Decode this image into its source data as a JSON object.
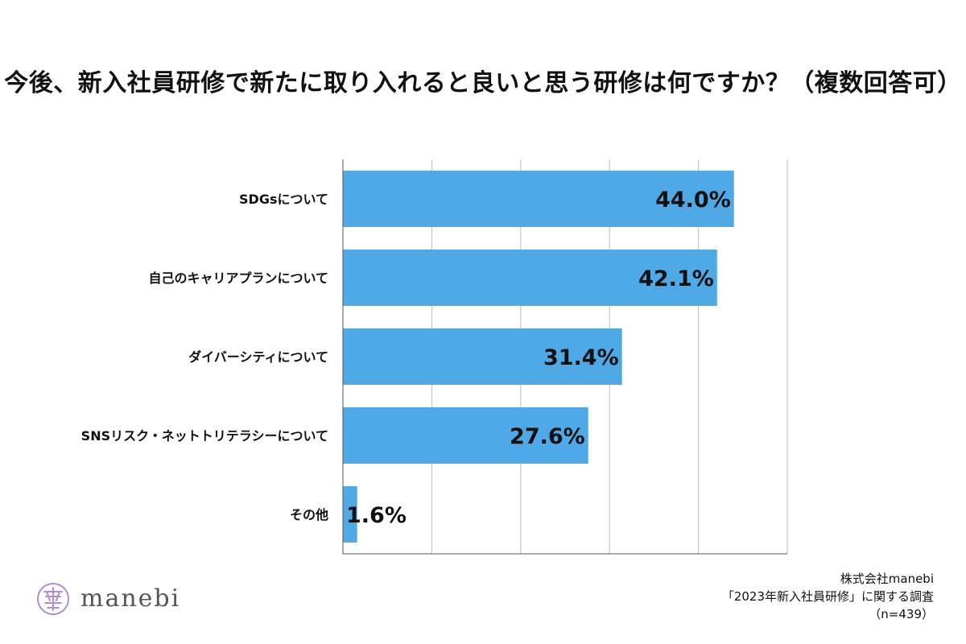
{
  "chart_data": {
    "type": "bar",
    "orientation": "horizontal",
    "title": "今後、新入社員研修で新たに取り入れると良いと思う研修は何ですか？（複数回答可）",
    "categories": [
      "SDGsについて",
      "自己のキャリアプランについて",
      "ダイバーシティについて",
      "SNSリスク・ネットトリテラシーについて",
      "その他"
    ],
    "values": [
      44.0,
      42.1,
      31.4,
      27.6,
      1.6
    ],
    "value_labels": [
      "44.0%",
      "42.1%",
      "31.4%",
      "27.6%",
      "1.6%"
    ],
    "xlim": [
      0,
      50
    ],
    "grid": true,
    "bar_color": "#4ea9e6",
    "grid_color": "#bdbdbd",
    "axis_color": "#555555"
  },
  "branding": {
    "logo_text": "manebi",
    "logo_icon": "manebi-emblem-icon",
    "logo_color": "#b18ad8"
  },
  "source": {
    "company": "株式会社manebi",
    "survey": "「2023年新入社員研修」に関する調査",
    "sample": "（n=439）"
  }
}
